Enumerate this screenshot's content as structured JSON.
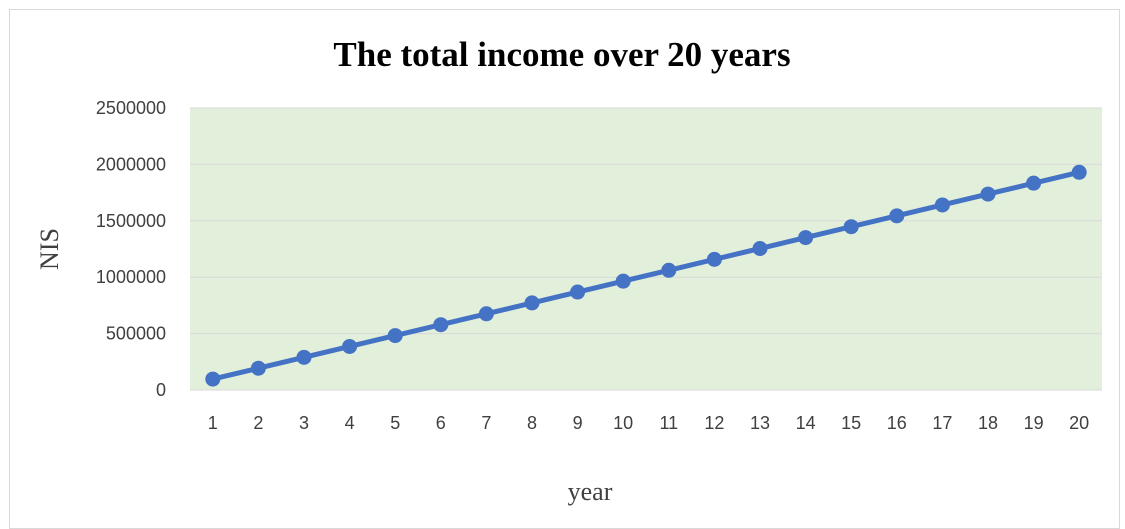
{
  "chart_data": {
    "type": "line",
    "title": "The total income over 20 years",
    "xlabel": "year",
    "ylabel": "NIS",
    "categories": [
      "1",
      "2",
      "3",
      "4",
      "5",
      "6",
      "7",
      "8",
      "9",
      "10",
      "11",
      "12",
      "13",
      "14",
      "15",
      "16",
      "17",
      "18",
      "19",
      "20"
    ],
    "series": [
      {
        "values": [
          96500,
          193000,
          289500,
          386000,
          482500,
          579000,
          675500,
          772000,
          868500,
          965000,
          1061500,
          1158000,
          1254500,
          1351000,
          1447500,
          1544000,
          1640500,
          1737000,
          1833500,
          1930000
        ]
      }
    ],
    "ylim": [
      0,
      2500000
    ],
    "yticks": [
      "0",
      "500000",
      "1000000",
      "1500000",
      "2000000",
      "2500000"
    ],
    "grid": true,
    "legend": "none",
    "colors": {
      "line": "#4472c4",
      "plot_background": "#e2efda",
      "gridline": "#d9d9d9",
      "frame_border": "#d9d9d9"
    }
  }
}
